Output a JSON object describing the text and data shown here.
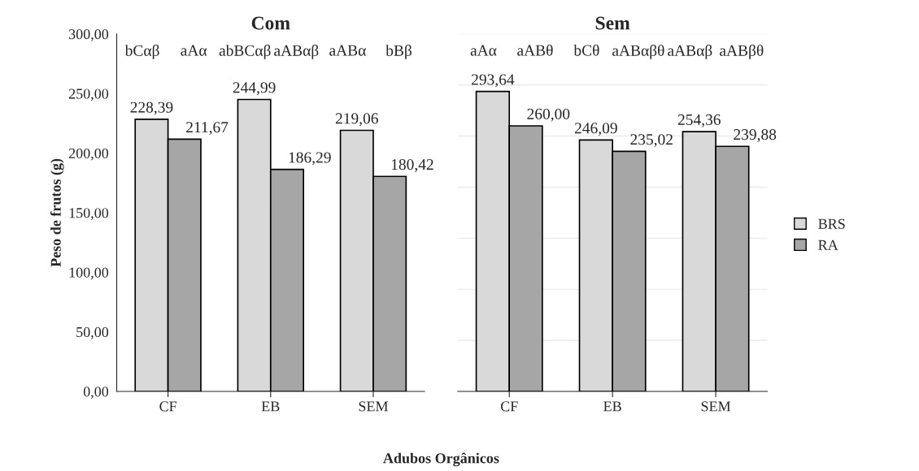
{
  "chart_data": [
    {
      "type": "bar",
      "title": "Com",
      "xlabel": "Adubos Orgânicos",
      "ylabel": "Peso de frutos (g)",
      "categories": [
        "CF",
        "EB",
        "SEM"
      ],
      "series": [
        {
          "name": "BRS",
          "color": "#d9d9d9",
          "values": [
            228.39,
            244.99,
            219.06
          ],
          "value_labels": [
            "228,39",
            "244,99",
            "219,06"
          ]
        },
        {
          "name": "RA",
          "color": "#a6a6a6",
          "values": [
            211.67,
            186.29,
            180.42
          ],
          "value_labels": [
            "211,67",
            "186,29",
            "180,42"
          ]
        }
      ],
      "legend": "right",
      "ylim": [
        0,
        300
      ],
      "yticks": [
        {
          "value": 0,
          "label": "0,00"
        },
        {
          "value": 50,
          "label": "50,00"
        },
        {
          "value": 100,
          "label": "100,00"
        },
        {
          "value": 150,
          "label": "150,00"
        },
        {
          "value": 200,
          "label": "200,00"
        },
        {
          "value": 250,
          "label": "250,00"
        },
        {
          "value": 300,
          "label": "300,00"
        }
      ],
      "annotations": [
        "bCαβ",
        "aAα",
        "abBCαβ",
        "aABαβ",
        "aABα",
        "bBβ"
      ]
    },
    {
      "type": "bar",
      "title": "Sem",
      "categories": [
        "CF",
        "EB",
        "SEM"
      ],
      "series": [
        {
          "color": "#d9d9d9",
          "values": [
            293.64,
            246.09,
            254.36
          ],
          "value_labels": [
            "293,64",
            "246,09",
            "254,36"
          ]
        },
        {
          "color": "#a6a6a6",
          "values": [
            260.0,
            235.02,
            239.88
          ],
          "value_labels": [
            "260,00",
            "235,02",
            "239,88"
          ]
        }
      ],
      "ylim": [
        0,
        350
      ],
      "yticks": [
        {
          "value": 0,
          "label": null
        },
        {
          "value": 50,
          "label": null
        },
        {
          "value": 100,
          "label": null
        },
        {
          "value": 150,
          "label": null
        },
        {
          "value": 200,
          "label": null
        },
        {
          "value": 250,
          "label": null
        },
        {
          "value": 300,
          "label": null
        },
        {
          "value": 350,
          "label": null
        }
      ],
      "tick_labels": "x",
      "grid": "y",
      "annotations": [
        "aAα",
        "aABθ",
        "bCθ",
        "aABαβθ",
        "aABαβ",
        "aABβθ"
      ]
    }
  ]
}
